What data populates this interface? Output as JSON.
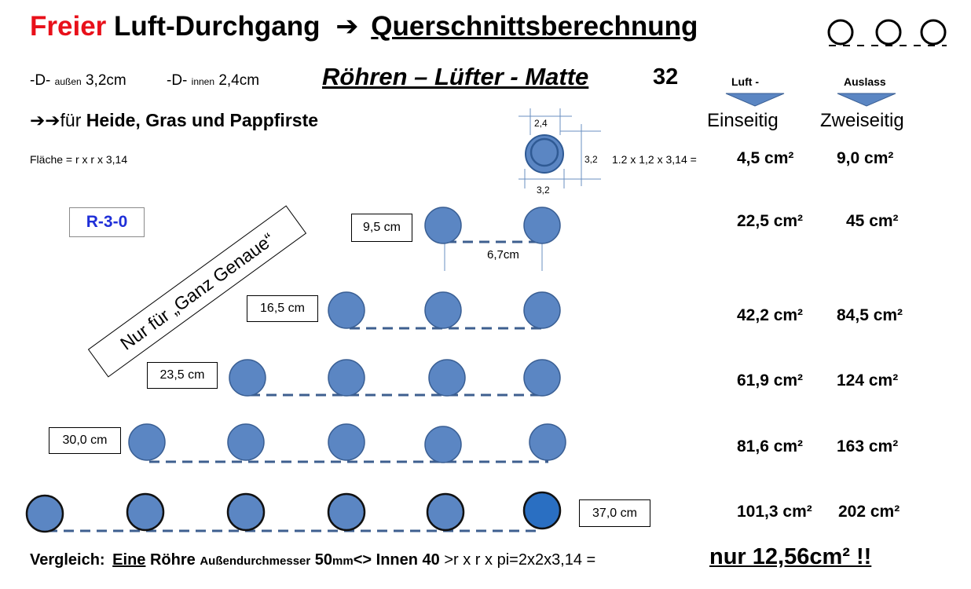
{
  "header": {
    "title_red": "Freier",
    "title_black": "Luft-Durchgang",
    "arrow": "➔",
    "title_underlined": "Querschnittsberechnung"
  },
  "specs": {
    "d_prefix_outer": "-D-",
    "d_sub_outer": "außen",
    "d_outer_value": "3,2cm",
    "d_prefix_inner": "-D-",
    "d_sub_inner": "innen",
    "d_inner_value": "2,4cm",
    "product_title": "Röhren – Lüfter - Matte",
    "product_number": "32"
  },
  "subheading": {
    "arrows": "➔➔",
    "text_normal": "für",
    "text_bold": "Heide, Gras und Pappfirste"
  },
  "formula_area": "Fläche = r x r x 3,14",
  "tube_diagram": {
    "inner_label": "2,4",
    "side_label": "3,2",
    "bottom_label": "3,2",
    "calculation": "1.2 x 1,2 x 3,14 ="
  },
  "columns": {
    "one_sided_top": "Luft -",
    "two_sided_top": "Auslass",
    "one_sided": "Einseitig",
    "two_sided": "Zweiseitig",
    "accent_color": "#5b86c3"
  },
  "rows": [
    {
      "width_label": "",
      "one_sided": "4,5 cm²",
      "two_sided": "9,0 cm²",
      "tubes": 1
    },
    {
      "width_label": "9,5 cm",
      "one_sided": "22,5 cm²",
      "two_sided": "45 cm²",
      "tubes": 2,
      "spacing_label": "6,7cm"
    },
    {
      "width_label": "16,5 cm",
      "one_sided": "42,2 cm²",
      "two_sided": "84,5 cm²",
      "tubes": 3
    },
    {
      "width_label": "23,5 cm",
      "one_sided": "61,9 cm²",
      "two_sided": "124 cm²",
      "tubes": 4
    },
    {
      "width_label": "30,0 cm",
      "one_sided": "81,6 cm²",
      "two_sided": "163 cm²",
      "tubes": 5
    },
    {
      "width_label": "37,0 cm",
      "one_sided": "101,3 cm²",
      "two_sided": "202 cm²",
      "tubes": 6
    }
  ],
  "badge": "R-3-0",
  "diagonal_note": "Nur für „Ganz Genaue“",
  "footer": {
    "prefix": "Vergleich:",
    "underlined_word": "Eine",
    "part1": "Röhre",
    "part2_small": "Außendurchmesser",
    "part3": "50",
    "part3_small": "mm",
    "part4": "<> Innen 40",
    "part5": ">r x r x pi=2x2x3,14 =",
    "result": "nur 12,56cm² !!"
  }
}
